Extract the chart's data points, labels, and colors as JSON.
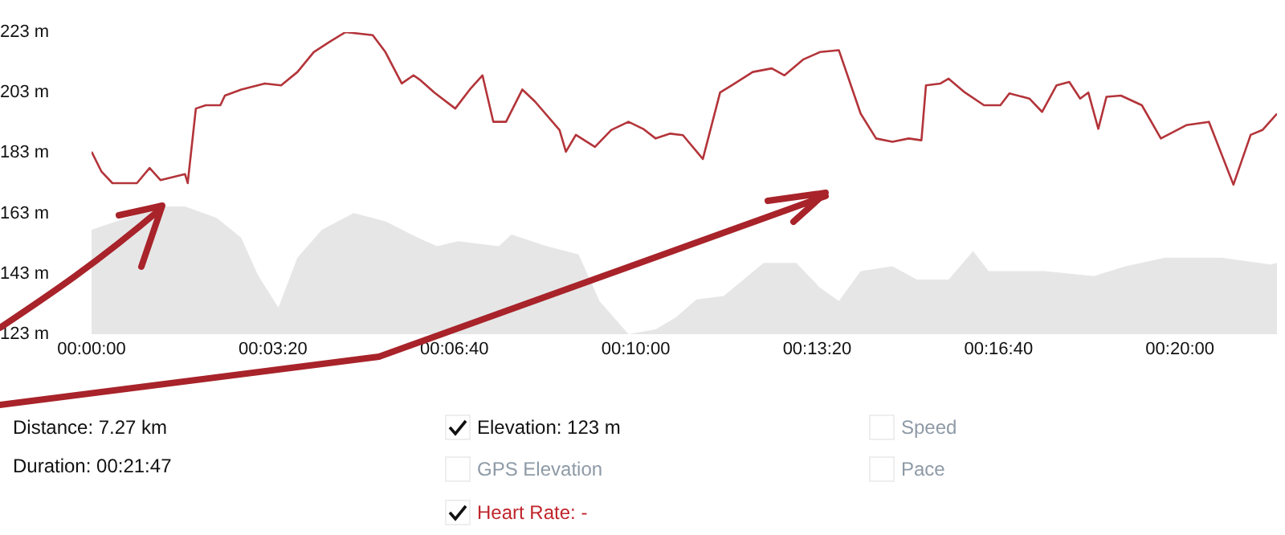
{
  "chart_data": {
    "type": "line",
    "xlim": [
      0,
      1307
    ],
    "xticks": [
      {
        "value": 0,
        "label": "00:00:00"
      },
      {
        "value": 200,
        "label": "00:03:20"
      },
      {
        "value": 400,
        "label": "00:06:40"
      },
      {
        "value": 600,
        "label": "00:10:00"
      },
      {
        "value": 800,
        "label": "00:13:20"
      },
      {
        "value": 1000,
        "label": "00:16:40"
      },
      {
        "value": 1200,
        "label": "00:20:00"
      }
    ],
    "ylim": [
      123,
      223
    ],
    "yticks": [
      {
        "value": 123,
        "label": "123 m"
      },
      {
        "value": 143,
        "label": "143 m"
      },
      {
        "value": 163,
        "label": "163 m"
      },
      {
        "value": 183,
        "label": "183 m"
      },
      {
        "value": 203,
        "label": "203 m"
      },
      {
        "value": 223,
        "label": "223 m"
      }
    ],
    "grid": false,
    "marker": "none",
    "line_style": "solid",
    "series": [
      {
        "type": "area",
        "color": "#e6e6e6",
        "x": [
          0,
          76,
          103,
          138,
          165,
          183,
          206,
          227,
          254,
          289,
          324,
          360,
          381,
          404,
          449,
          463,
          502,
          537,
          560,
          592,
          622,
          644,
          667,
          697,
          741,
          777,
          803,
          824,
          848,
          883,
          910,
          945,
          972,
          989,
          1051,
          1105,
          1140,
          1184,
          1246,
          1300,
          1307
        ],
        "values": [
          157.6,
          165.3,
          165.3,
          161.5,
          154.9,
          142.8,
          131.8,
          148.3,
          157.6,
          163.1,
          160.4,
          154.9,
          152.1,
          153.8,
          152.1,
          156,
          152.1,
          149.4,
          134,
          123,
          124.6,
          128.5,
          134.5,
          135.6,
          146.6,
          146.6,
          138.4,
          134,
          143.9,
          145.5,
          141.1,
          141.1,
          150.5,
          143.9,
          143.9,
          142.2,
          145.5,
          148.3,
          148.3,
          146.1,
          146.6
        ]
      },
      {
        "type": "line",
        "color": "#b3343a",
        "x": [
          0,
          11,
          23,
          50,
          64,
          76,
          103,
          106,
          115,
          126,
          142,
          147,
          165,
          191,
          209,
          227,
          245,
          262,
          280,
          310,
          324,
          342,
          355,
          363,
          378,
          401,
          417,
          431,
          443,
          457,
          475,
          489,
          516,
          523,
          534,
          555,
          573,
          592,
          608,
          622,
          638,
          652,
          674,
          693,
          706,
          729,
          750,
          764,
          785,
          803,
          824,
          848,
          865,
          883,
          901,
          915,
          920,
          936,
          945,
          963,
          984,
          1002,
          1012,
          1034,
          1048,
          1064,
          1078,
          1090,
          1099,
          1110,
          1119,
          1135,
          1158,
          1179,
          1207,
          1232,
          1259,
          1278,
          1291,
          1307
        ],
        "values": [
          183.4,
          176.8,
          173,
          173,
          178,
          174,
          176,
          173,
          197.7,
          198.8,
          198.8,
          202,
          204,
          206,
          205.4,
          209.8,
          216.4,
          219.7,
          223,
          222,
          216.4,
          206,
          208.7,
          207,
          203,
          197.7,
          204,
          208.7,
          193.3,
          193.3,
          204,
          200,
          190.6,
          183.4,
          189,
          185,
          190.6,
          193.3,
          191,
          187.8,
          189.4,
          188.9,
          181,
          203,
          205.4,
          209.8,
          211,
          208.7,
          214,
          216.4,
          217,
          196,
          187.8,
          186.7,
          187.8,
          187.2,
          205.4,
          206,
          207.6,
          203,
          198.8,
          198.8,
          202.7,
          201,
          196.6,
          205.4,
          206.5,
          201,
          203,
          191,
          201.6,
          202,
          198.8,
          187.8,
          192.2,
          193.3,
          172.5,
          189,
          190.6,
          196
        ]
      }
    ],
    "annotations": [
      "Distance: 7.27 km",
      "Duration: 00:21:47",
      "Elevation: 123 m",
      "GPS Elevation",
      "Heart Rate: -",
      "Speed",
      "Pace"
    ]
  }
}
